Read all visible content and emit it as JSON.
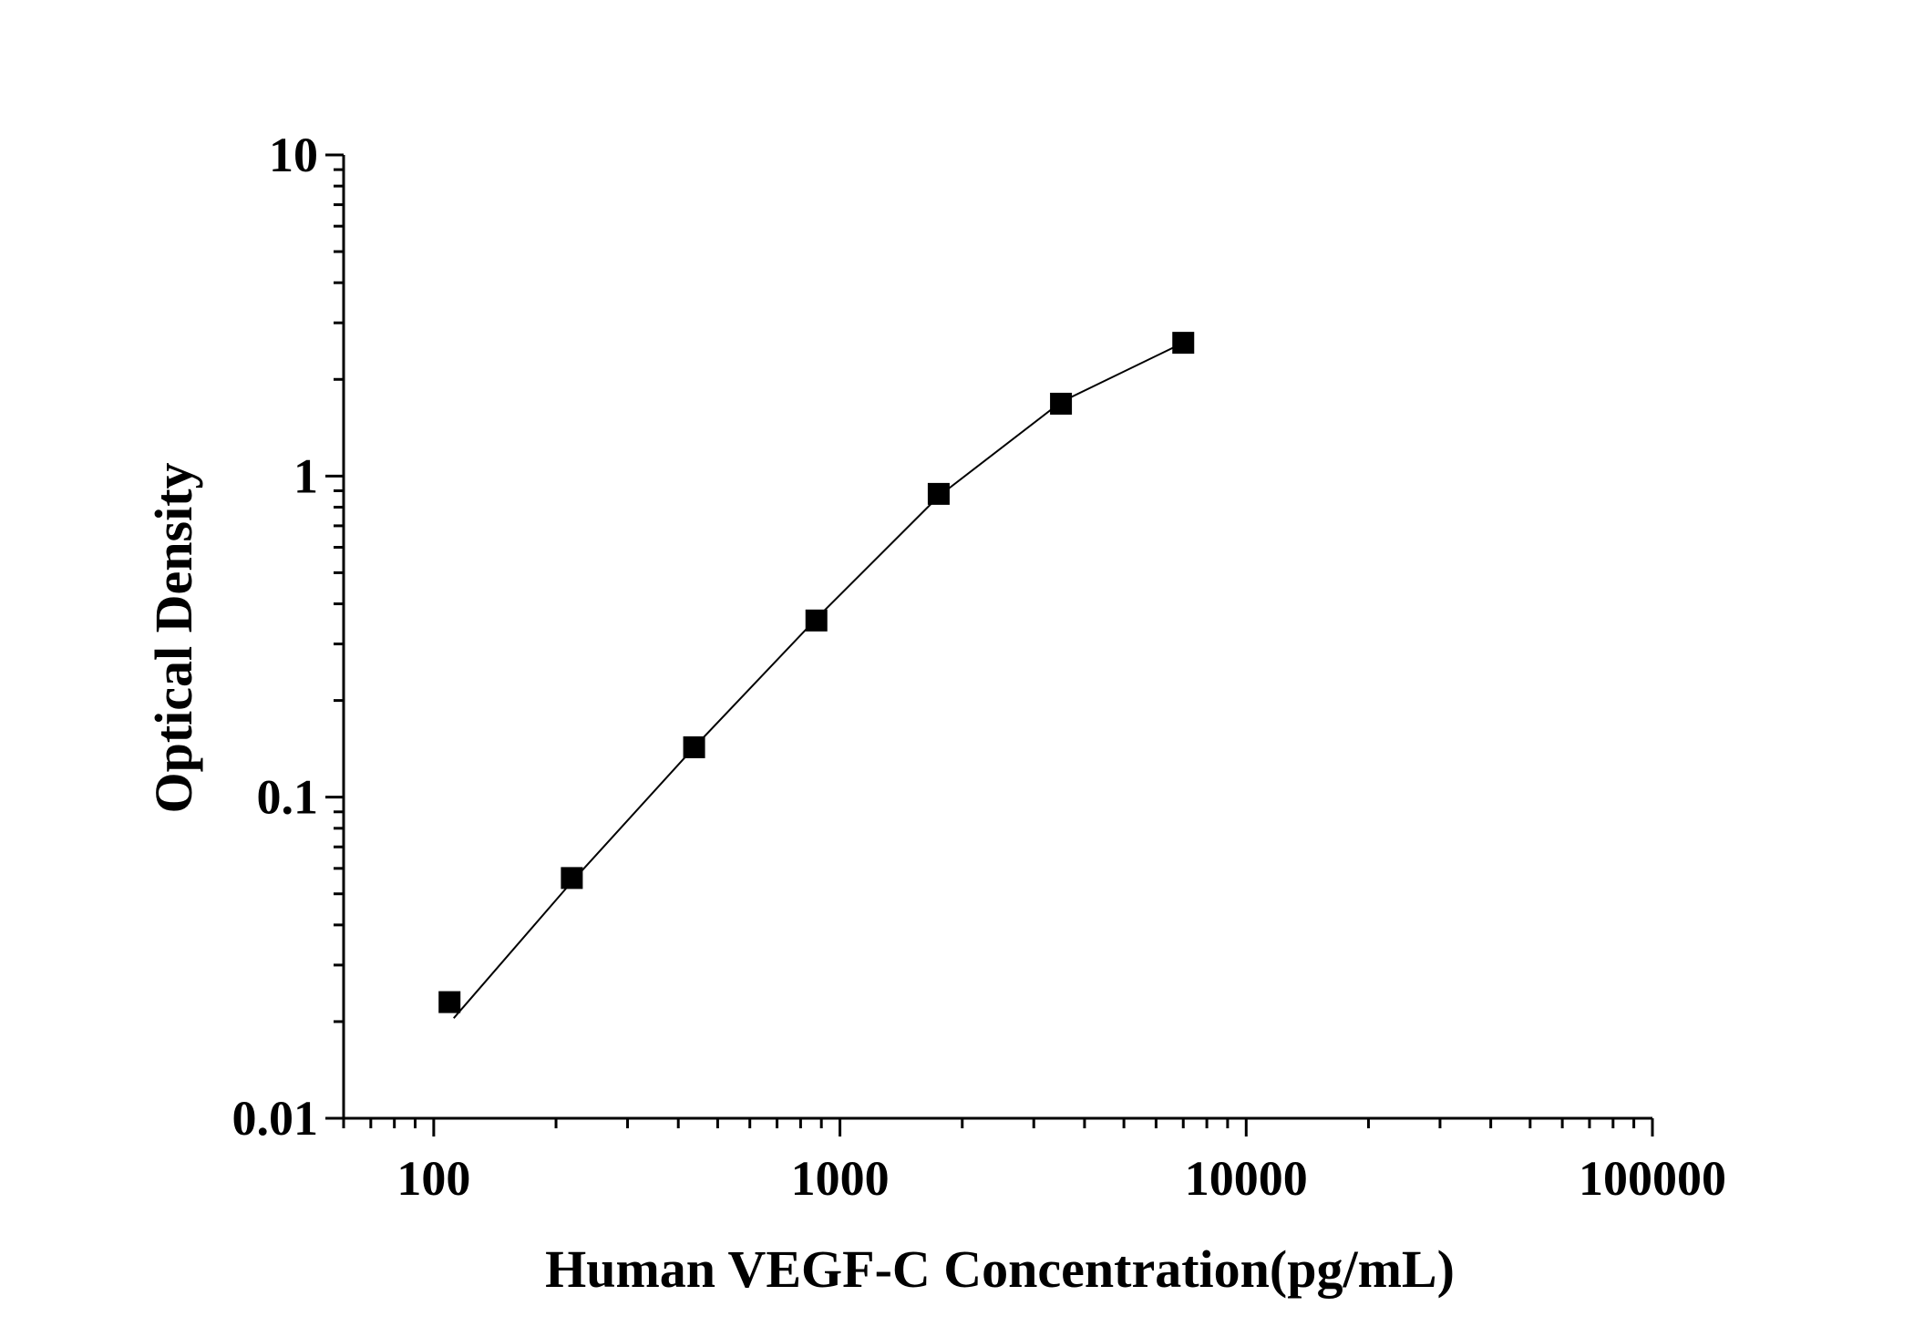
{
  "chart_data": {
    "type": "scatter",
    "title": "",
    "xlabel": "Human VEGF-C Concentration(pg/mL)",
    "ylabel": "Optical Density",
    "x_scale": "log",
    "y_scale": "log",
    "xlim": [
      60,
      100000
    ],
    "ylim": [
      0.01,
      10
    ],
    "x_ticks": [
      {
        "value": 100,
        "label": "100"
      },
      {
        "value": 1000,
        "label": "1000"
      },
      {
        "value": 10000,
        "label": "10000"
      },
      {
        "value": 100000,
        "label": "100000"
      }
    ],
    "y_ticks": [
      {
        "value": 0.01,
        "label": "0.01"
      },
      {
        "value": 0.1,
        "label": "0.1"
      },
      {
        "value": 1,
        "label": "1"
      },
      {
        "value": 10,
        "label": "10"
      }
    ],
    "grid": false,
    "legend": "none",
    "series": [
      {
        "marker": "square",
        "color": "#000000",
        "points": [
          {
            "x": 109.375,
            "y": 0.023
          },
          {
            "x": 218.75,
            "y": 0.056
          },
          {
            "x": 437.5,
            "y": 0.143
          },
          {
            "x": 875,
            "y": 0.355
          },
          {
            "x": 1750,
            "y": 0.88
          },
          {
            "x": 3500,
            "y": 1.68
          },
          {
            "x": 7000,
            "y": 2.6
          }
        ],
        "fit_curve": [
          {
            "x": 112,
            "y": 0.0205
          },
          {
            "x": 218.75,
            "y": 0.0545
          },
          {
            "x": 437.5,
            "y": 0.143
          },
          {
            "x": 875,
            "y": 0.36
          },
          {
            "x": 1750,
            "y": 0.865
          },
          {
            "x": 3500,
            "y": 1.7
          },
          {
            "x": 7000,
            "y": 2.6
          }
        ]
      }
    ]
  }
}
